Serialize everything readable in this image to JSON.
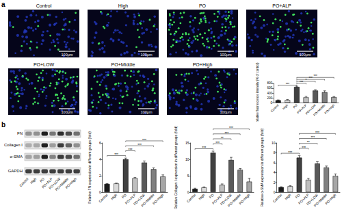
{
  "figure": {
    "panels": [
      "a",
      "b"
    ],
    "images": {
      "titles": [
        "Control",
        "High",
        "PO",
        "PO+ALP",
        "PO+LOW",
        "PO+Middle",
        "PO+High"
      ],
      "scale_bar": "100μm"
    },
    "blot": {
      "rows": [
        "FN",
        "Collagen I",
        "α-SMA",
        "GAPDH"
      ],
      "lanes": [
        "Control",
        "High",
        "PO",
        "PO+ALP",
        "PO+LOW",
        "PO+Middle",
        "PO+High"
      ]
    }
  },
  "chart_data": [
    {
      "type": "bar",
      "ylabel": "Relative fluorescence intensity (% of control)",
      "categories": [
        "Control",
        "High",
        "PO",
        "PO+ALP",
        "PO+LOW",
        "PO+Middle",
        "PO+High"
      ],
      "values": [
        100,
        110,
        650,
        220,
        500,
        430,
        230
      ],
      "errors": [
        15,
        20,
        30,
        40,
        35,
        60,
        25
      ],
      "colors": [
        "#1a1a1a",
        "#d9d9d9",
        "#404040",
        "#bfbfbf",
        "#595959",
        "#7f7f7f",
        "#a6a6a6"
      ],
      "ylim": [
        0,
        800
      ],
      "yticks": [
        0,
        200,
        400,
        600,
        800
      ],
      "grid": false,
      "significance": [
        {
          "groups": [
            "Control",
            "PO"
          ],
          "label": "***"
        },
        {
          "groups": [
            "PO",
            "PO+ALP"
          ],
          "label": "***"
        },
        {
          "groups": [
            "PO",
            "PO+LOW"
          ],
          "label": "*"
        },
        {
          "groups": [
            "PO",
            "PO+Middle"
          ],
          "label": "***"
        },
        {
          "groups": [
            "PO",
            "PO+High"
          ],
          "label": "***"
        }
      ]
    },
    {
      "type": "bar",
      "ylabel": "Relative FN expression in different groups (fold)",
      "categories": [
        "Control",
        "High",
        "PO",
        "PO+ALP",
        "PO+LOW",
        "PO+Middle",
        "PO+High"
      ],
      "values": [
        1,
        1.05,
        4,
        1.7,
        3.6,
        2.8,
        1.9
      ],
      "errors": [
        0.05,
        0.05,
        0.15,
        0.1,
        0.2,
        0.15,
        0.2
      ],
      "colors": [
        "#1a1a1a",
        "#d9d9d9",
        "#404040",
        "#bfbfbf",
        "#595959",
        "#7f7f7f",
        "#a6a6a6"
      ],
      "ylim": [
        0,
        6
      ],
      "yticks": [
        0,
        2,
        4,
        6
      ],
      "grid": false,
      "significance": [
        {
          "groups": [
            "Control",
            "PO"
          ],
          "label": "***"
        },
        {
          "groups": [
            "PO",
            "PO+ALP"
          ],
          "label": "***"
        },
        {
          "groups": [
            "PO",
            "PO+Middle"
          ],
          "label": "***"
        },
        {
          "groups": [
            "PO",
            "PO+High"
          ],
          "label": "***"
        }
      ]
    },
    {
      "type": "bar",
      "ylabel": "Relative Collagen I expression in different groups (fold)",
      "categories": [
        "Control",
        "High",
        "PO",
        "PO+ALP",
        "PO+LOW",
        "PO+Middle",
        "PO+High"
      ],
      "values": [
        1,
        1.4,
        12,
        2.2,
        9.8,
        6.8,
        3.2
      ],
      "errors": [
        0.2,
        0.2,
        0.5,
        0.3,
        0.8,
        0.4,
        1
      ],
      "colors": [
        "#1a1a1a",
        "#d9d9d9",
        "#404040",
        "#bfbfbf",
        "#595959",
        "#7f7f7f",
        "#a6a6a6"
      ],
      "ylim": [
        0,
        15
      ],
      "yticks": [
        0,
        5,
        10,
        15
      ],
      "grid": false,
      "significance": [
        {
          "groups": [
            "Control",
            "PO"
          ],
          "label": "***"
        },
        {
          "groups": [
            "PO",
            "PO+ALP"
          ],
          "label": "***"
        },
        {
          "groups": [
            "PO",
            "PO+LOW"
          ],
          "label": "**"
        },
        {
          "groups": [
            "PO",
            "PO+Middle"
          ],
          "label": "***"
        },
        {
          "groups": [
            "PO",
            "PO+High"
          ],
          "label": "***"
        }
      ]
    },
    {
      "type": "bar",
      "ylabel": "Relative α-SMA expression in different groups (fold)",
      "categories": [
        "Control",
        "High",
        "PO",
        "PO+ALP",
        "PO+LOW",
        "PO+Middle",
        "PO+High"
      ],
      "values": [
        1,
        1.2,
        7,
        2.5,
        5.8,
        5,
        3.3
      ],
      "errors": [
        0.1,
        0.1,
        0.4,
        0.3,
        0.4,
        0.3,
        0.4
      ],
      "colors": [
        "#1a1a1a",
        "#d9d9d9",
        "#404040",
        "#bfbfbf",
        "#595959",
        "#7f7f7f",
        "#a6a6a6"
      ],
      "ylim": [
        0,
        10
      ],
      "yticks": [
        0,
        2,
        4,
        6,
        8,
        10
      ],
      "grid": false,
      "significance": [
        {
          "groups": [
            "Control",
            "PO"
          ],
          "label": "***"
        },
        {
          "groups": [
            "PO",
            "PO+ALP"
          ],
          "label": "***"
        },
        {
          "groups": [
            "PO",
            "PO+LOW"
          ],
          "label": "**"
        },
        {
          "groups": [
            "PO",
            "PO+Middle"
          ],
          "label": "***"
        },
        {
          "groups": [
            "PO",
            "PO+High"
          ],
          "label": "***"
        }
      ]
    }
  ]
}
